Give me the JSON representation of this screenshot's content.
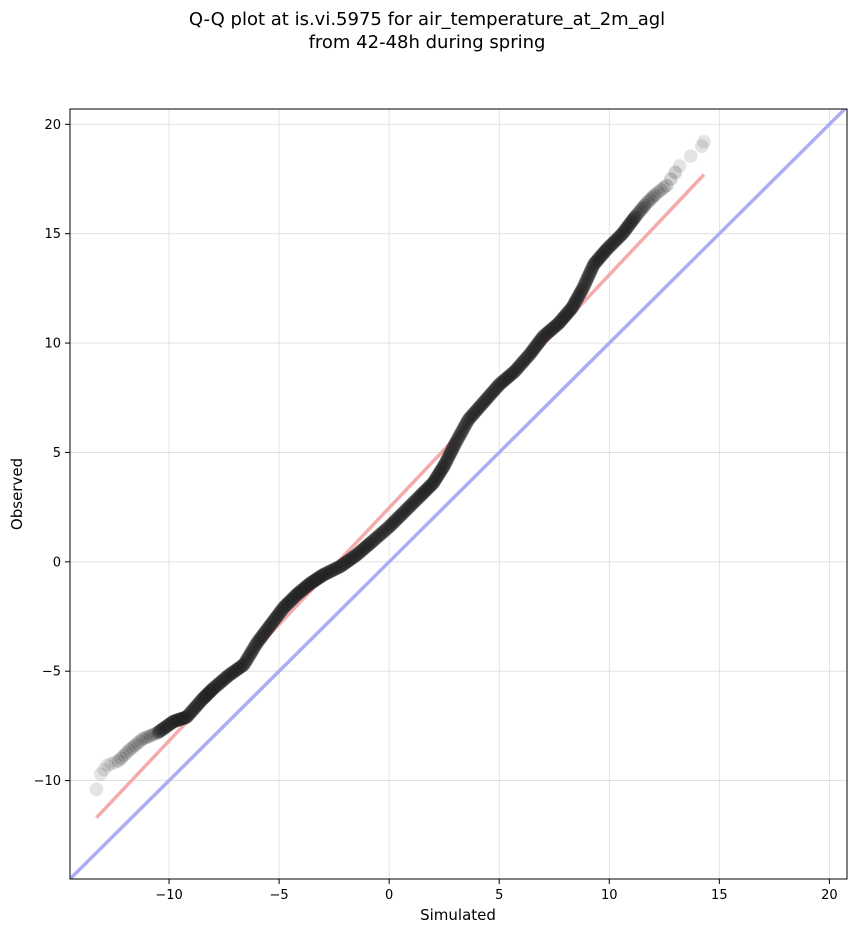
{
  "chart_data": {
    "type": "scatter",
    "title": "Q-Q plot at is.vi.5975 for air_temperature_at_2m_agl",
    "subtitle": "from 42-48h during spring",
    "xlabel": "Simulated",
    "ylabel": "Observed",
    "xlim": [
      -14.5,
      20.8
    ],
    "ylim": [
      -14.5,
      20.7
    ],
    "xticks": [
      -10,
      -5,
      0,
      5,
      10,
      15,
      20
    ],
    "yticks": [
      -10,
      -5,
      0,
      5,
      10,
      15,
      20
    ],
    "xtick_labels": [
      "−10",
      "−5",
      "0",
      "5",
      "10",
      "15",
      "20"
    ],
    "ytick_labels": [
      "−10",
      "−5",
      "0",
      "5",
      "10",
      "15",
      "20"
    ],
    "grid": true,
    "quantile_curve": [
      [
        -13.3,
        -10.4
      ],
      [
        -13.1,
        -9.7
      ],
      [
        -12.8,
        -9.3
      ],
      [
        -12.3,
        -9.1
      ],
      [
        -11.8,
        -8.6
      ],
      [
        -11.2,
        -8.1
      ],
      [
        -10.5,
        -7.8
      ],
      [
        -9.8,
        -7.3
      ],
      [
        -9.2,
        -7.1
      ],
      [
        -8.5,
        -6.3
      ],
      [
        -8.0,
        -5.8
      ],
      [
        -7.3,
        -5.2
      ],
      [
        -6.6,
        -4.7
      ],
      [
        -6.0,
        -3.7
      ],
      [
        -5.4,
        -2.9
      ],
      [
        -4.8,
        -2.1
      ],
      [
        -4.2,
        -1.5
      ],
      [
        -3.6,
        -1.0
      ],
      [
        -3.0,
        -0.6
      ],
      [
        -2.2,
        -0.2
      ],
      [
        -1.5,
        0.3
      ],
      [
        -0.8,
        0.9
      ],
      [
        0.0,
        1.6
      ],
      [
        0.7,
        2.3
      ],
      [
        1.4,
        3.0
      ],
      [
        2.0,
        3.6
      ],
      [
        2.5,
        4.4
      ],
      [
        3.0,
        5.4
      ],
      [
        3.6,
        6.5
      ],
      [
        4.3,
        7.3
      ],
      [
        5.0,
        8.1
      ],
      [
        5.7,
        8.7
      ],
      [
        6.4,
        9.5
      ],
      [
        7.0,
        10.3
      ],
      [
        7.7,
        10.9
      ],
      [
        8.3,
        11.6
      ],
      [
        8.8,
        12.5
      ],
      [
        9.3,
        13.6
      ],
      [
        9.9,
        14.3
      ],
      [
        10.6,
        15.0
      ],
      [
        11.2,
        15.8
      ],
      [
        11.7,
        16.4
      ],
      [
        12.1,
        16.8
      ],
      [
        12.6,
        17.2
      ],
      [
        13.2,
        18.1
      ],
      [
        14.2,
        19.0
      ],
      [
        14.3,
        19.2
      ]
    ],
    "fit_line": {
      "x": [
        -13.3,
        14.3
      ],
      "y": [
        -11.7,
        17.7
      ],
      "color": "#f4a6a6"
    },
    "identity_line": {
      "x": [
        -14.5,
        20.8
      ],
      "y": [
        -14.5,
        20.8
      ],
      "color": "#a8aaf4"
    },
    "point_color": "#222222"
  }
}
